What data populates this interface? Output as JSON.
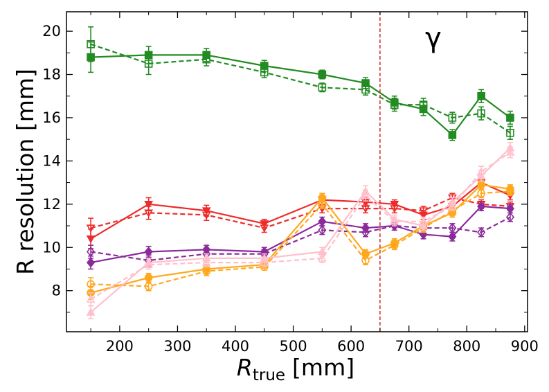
{
  "chart_data": {
    "type": "line",
    "title": "",
    "xlabel": "R_true [mm]",
    "xlabel_main": "R",
    "xlabel_sub": "true",
    "xlabel_unit": "[mm]",
    "ylabel": "R resolution [mm]",
    "xlim": [
      108,
      905
    ],
    "ylim": [
      6.1,
      20.9
    ],
    "xticks": [
      200,
      300,
      400,
      500,
      600,
      700,
      800,
      900
    ],
    "yticks": [
      8,
      10,
      12,
      14,
      16,
      18,
      20
    ],
    "grid": false,
    "legend": "none",
    "annotation": "γ",
    "vline": {
      "x": 650,
      "color": "#d62728",
      "style": "dashed"
    },
    "x": [
      150,
      250,
      350,
      450,
      550,
      625,
      675,
      725,
      775,
      825,
      875
    ],
    "series": [
      {
        "color": "#228b22",
        "linestyle": "solid",
        "marker": "square",
        "filled": true,
        "values": [
          18.8,
          18.9,
          18.9,
          18.4,
          18.0,
          17.6,
          16.7,
          16.4,
          15.2,
          17.0,
          16.0
        ],
        "errors": [
          0.7,
          0.4,
          0.3,
          0.25,
          0.2,
          0.25,
          0.3,
          0.3,
          0.25,
          0.3,
          0.3
        ]
      },
      {
        "color": "#228b22",
        "linestyle": "dashed",
        "marker": "square",
        "filled": false,
        "values": [
          19.4,
          18.5,
          18.7,
          18.1,
          17.4,
          17.3,
          16.6,
          16.6,
          16.0,
          16.2,
          15.3
        ],
        "errors": [
          0.8,
          0.5,
          0.3,
          0.25,
          0.2,
          0.25,
          0.3,
          0.3,
          0.25,
          0.3,
          0.3
        ]
      },
      {
        "color": "#ee2b2b",
        "linestyle": "solid",
        "marker": "triangle-down",
        "filled": true,
        "values": [
          10.4,
          12.0,
          11.7,
          11.1,
          12.2,
          12.1,
          12.0,
          11.5,
          11.9,
          13.0,
          12.4
        ],
        "errors": [
          0.45,
          0.3,
          0.25,
          0.2,
          0.2,
          0.2,
          0.2,
          0.2,
          0.2,
          0.2,
          0.2
        ]
      },
      {
        "color": "#ee2b2b",
        "linestyle": "dashed",
        "marker": "triangle-down",
        "filled": false,
        "values": [
          10.9,
          11.6,
          11.5,
          10.9,
          11.8,
          11.8,
          11.8,
          11.7,
          12.3,
          12.0,
          11.9
        ],
        "errors": [
          0.45,
          0.3,
          0.25,
          0.2,
          0.2,
          0.2,
          0.2,
          0.2,
          0.2,
          0.2,
          0.2
        ]
      },
      {
        "color": "#8b2b9b",
        "linestyle": "solid",
        "marker": "diamond",
        "filled": true,
        "values": [
          9.3,
          9.8,
          9.9,
          9.8,
          11.2,
          10.9,
          11.0,
          10.6,
          10.5,
          11.9,
          11.8
        ],
        "errors": [
          0.3,
          0.25,
          0.2,
          0.2,
          0.2,
          0.2,
          0.2,
          0.2,
          0.2,
          0.2,
          0.2
        ]
      },
      {
        "color": "#8b2b9b",
        "linestyle": "dashed",
        "marker": "diamond",
        "filled": false,
        "values": [
          9.8,
          9.4,
          9.7,
          9.7,
          10.8,
          10.7,
          11.0,
          10.9,
          10.9,
          10.7,
          11.4
        ],
        "errors": [
          0.3,
          0.25,
          0.2,
          0.2,
          0.2,
          0.2,
          0.2,
          0.2,
          0.2,
          0.2,
          0.2
        ]
      },
      {
        "color": "#ffa81f",
        "linestyle": "solid",
        "marker": "circle",
        "filled": true,
        "values": [
          7.9,
          8.6,
          9.0,
          9.2,
          12.3,
          9.7,
          10.2,
          11.0,
          11.6,
          12.9,
          12.7
        ],
        "errors": [
          0.3,
          0.2,
          0.2,
          0.15,
          0.2,
          0.2,
          0.2,
          0.2,
          0.2,
          0.2,
          0.2
        ]
      },
      {
        "color": "#ffa81f",
        "linestyle": "dashed",
        "marker": "circle",
        "filled": false,
        "values": [
          8.3,
          8.2,
          8.9,
          9.1,
          12.0,
          9.4,
          10.1,
          10.9,
          11.7,
          12.5,
          12.6
        ],
        "errors": [
          0.3,
          0.2,
          0.2,
          0.15,
          0.2,
          0.2,
          0.2,
          0.2,
          0.2,
          0.2,
          0.2
        ]
      },
      {
        "color": "#ffc0cb",
        "linestyle": "solid",
        "marker": "triangle-up",
        "filled": true,
        "values": [
          7.0,
          9.3,
          9.5,
          9.5,
          9.8,
          12.6,
          11.3,
          11.0,
          12.1,
          13.3,
          14.6
        ],
        "errors": [
          0.3,
          0.2,
          0.2,
          0.2,
          0.2,
          0.25,
          0.2,
          0.2,
          0.2,
          0.25,
          0.25
        ]
      },
      {
        "color": "#ffc0cb",
        "linestyle": "dashed",
        "marker": "triangle-up",
        "filled": false,
        "values": [
          7.6,
          9.2,
          9.3,
          9.3,
          9.5,
          12.4,
          11.2,
          11.2,
          11.9,
          13.5,
          14.4
        ],
        "errors": [
          0.3,
          0.2,
          0.2,
          0.2,
          0.2,
          0.25,
          0.2,
          0.2,
          0.2,
          0.25,
          0.25
        ]
      }
    ]
  }
}
